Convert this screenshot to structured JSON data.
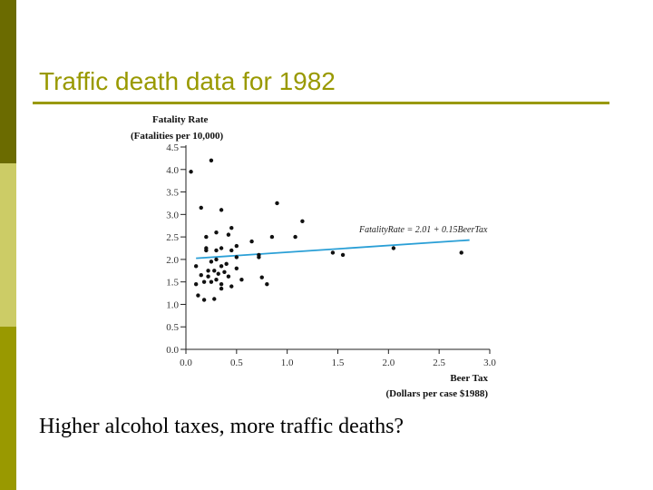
{
  "slide": {
    "title": "Traffic death data for 1982",
    "caption": "Higher alcohol taxes, more traffic deaths?"
  },
  "colors": {
    "accent": "#999900",
    "bar_dark": "#6b6b00",
    "bar_light": "#cccc66",
    "regression_line": "#2a9fd6"
  },
  "chart_data": {
    "type": "scatter",
    "ylabel_line1": "Fatality Rate",
    "ylabel_line2": "(Fatalities per 10,000)",
    "xlabel_line1": "Beer Tax",
    "xlabel_line2": "(Dollars per case $1988)",
    "xlim": [
      0,
      3
    ],
    "ylim": [
      0,
      4.5
    ],
    "xticks": [
      "0.0",
      "0.5",
      "1.0",
      "1.5",
      "2.0",
      "2.5",
      "3.0"
    ],
    "yticks": [
      "0.0",
      "0.5",
      "1.0",
      "1.5",
      "2.0",
      "2.5",
      "3.0",
      "3.5",
      "4.0",
      "4.5"
    ],
    "regression": {
      "label": "FatalityRate = 2.01 + 0.15BeerTax",
      "intercept": 2.01,
      "slope": 0.15,
      "x_range": [
        0.1,
        2.8
      ]
    },
    "points": [
      [
        0.05,
        3.95
      ],
      [
        0.25,
        4.2
      ],
      [
        0.15,
        3.15
      ],
      [
        0.35,
        3.1
      ],
      [
        0.45,
        2.7
      ],
      [
        0.42,
        2.55
      ],
      [
        0.3,
        2.6
      ],
      [
        0.2,
        2.5
      ],
      [
        0.2,
        2.25
      ],
      [
        0.2,
        2.2
      ],
      [
        0.3,
        2.2
      ],
      [
        0.35,
        2.25
      ],
      [
        0.45,
        2.2
      ],
      [
        0.5,
        2.3
      ],
      [
        0.65,
        2.4
      ],
      [
        0.85,
        2.5
      ],
      [
        0.9,
        3.25
      ],
      [
        1.15,
        2.85
      ],
      [
        1.08,
        2.5
      ],
      [
        0.72,
        2.1
      ],
      [
        0.72,
        2.05
      ],
      [
        0.5,
        2.05
      ],
      [
        0.3,
        2.0
      ],
      [
        0.25,
        1.95
      ],
      [
        0.4,
        1.9
      ],
      [
        0.35,
        1.85
      ],
      [
        0.5,
        1.8
      ],
      [
        0.1,
        1.85
      ],
      [
        0.22,
        1.75
      ],
      [
        0.28,
        1.75
      ],
      [
        0.38,
        1.72
      ],
      [
        0.15,
        1.65
      ],
      [
        0.22,
        1.62
      ],
      [
        0.32,
        1.68
      ],
      [
        0.42,
        1.62
      ],
      [
        0.55,
        1.55
      ],
      [
        0.18,
        1.5
      ],
      [
        0.25,
        1.5
      ],
      [
        0.3,
        1.55
      ],
      [
        0.35,
        1.45
      ],
      [
        0.1,
        1.45
      ],
      [
        0.45,
        1.4
      ],
      [
        0.35,
        1.35
      ],
      [
        0.12,
        1.2
      ],
      [
        0.18,
        1.1
      ],
      [
        0.28,
        1.12
      ],
      [
        0.75,
        1.6
      ],
      [
        0.8,
        1.45
      ],
      [
        1.45,
        2.15
      ],
      [
        1.55,
        2.1
      ],
      [
        2.05,
        2.25
      ],
      [
        2.72,
        2.15
      ]
    ]
  }
}
